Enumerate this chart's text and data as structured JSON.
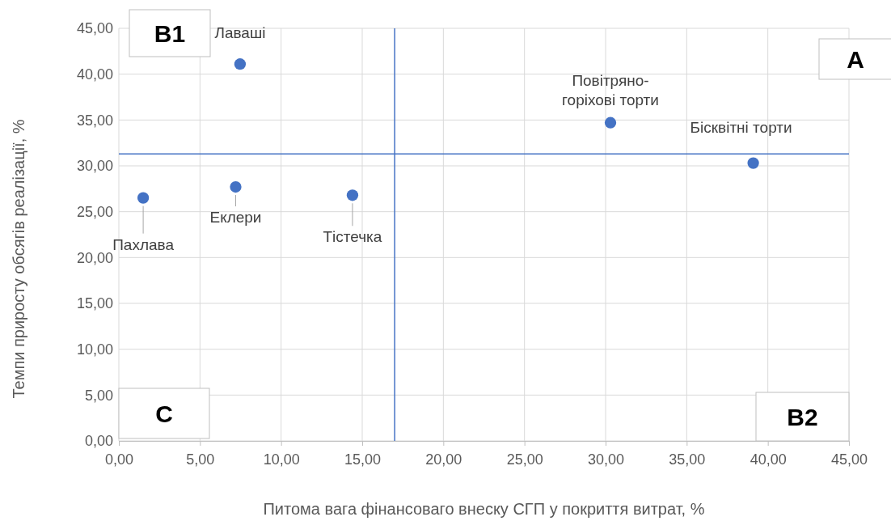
{
  "chart_data": {
    "type": "scatter",
    "xlabel": "Питома вага фінансоваго внеску СГП у покриття витрат, %",
    "ylabel": "Темпи приросту обсягів реалізації, %",
    "x": [
      7.47,
      30.3,
      39.1,
      1.5,
      7.2,
      14.4
    ],
    "series": [
      {
        "color": "#4472c4",
        "values": [
          41.1,
          34.7,
          30.3,
          26.5,
          27.7,
          26.8
        ]
      }
    ],
    "xlim": [
      0,
      45
    ],
    "ylim": [
      0,
      45
    ],
    "xticks": [
      {
        "value": 0,
        "label": "0,00"
      },
      {
        "value": 5,
        "label": "5,00"
      },
      {
        "value": 10,
        "label": "10,00"
      },
      {
        "value": 15,
        "label": "15,00"
      },
      {
        "value": 20,
        "label": "20,00"
      },
      {
        "value": 25,
        "label": "25,00"
      },
      {
        "value": 30,
        "label": "30,00"
      },
      {
        "value": 35,
        "label": "35,00"
      },
      {
        "value": 40,
        "label": "40,00"
      },
      {
        "value": 45,
        "label": "45,00"
      }
    ],
    "yticks": [
      {
        "value": 0,
        "label": "0,00"
      },
      {
        "value": 5,
        "label": "5,00"
      },
      {
        "value": 10,
        "label": "10,00"
      },
      {
        "value": 15,
        "label": "15,00"
      },
      {
        "value": 20,
        "label": "20,00"
      },
      {
        "value": 25,
        "label": "25,00"
      },
      {
        "value": 30,
        "label": "30,00"
      },
      {
        "value": 35,
        "label": "35,00"
      },
      {
        "value": 40,
        "label": "40,00"
      },
      {
        "value": 45,
        "label": "45,00"
      }
    ],
    "grid": true,
    "marker": "circle",
    "ref_lines": [
      {
        "axis": "x",
        "value": 17.0,
        "color": "#4472c4"
      },
      {
        "axis": "y",
        "value": 31.3,
        "color": "#4472c4"
      }
    ],
    "annotations": [
      {
        "text": "Лаваші",
        "x": 7.47,
        "y": 41.1
      },
      {
        "text": "Повітряно-горіхові торти",
        "x": 30.3,
        "y": 34.7
      },
      {
        "text": "Бісквітні торти",
        "x": 39.1,
        "y": 30.3
      },
      {
        "text": "Пахлава",
        "x": 1.5,
        "y": 26.5
      },
      {
        "text": "Еклери",
        "x": 7.2,
        "y": 27.7
      },
      {
        "text": "Тістечка",
        "x": 14.4,
        "y": 26.8
      },
      "B1",
      "A",
      "C",
      "B2"
    ]
  }
}
